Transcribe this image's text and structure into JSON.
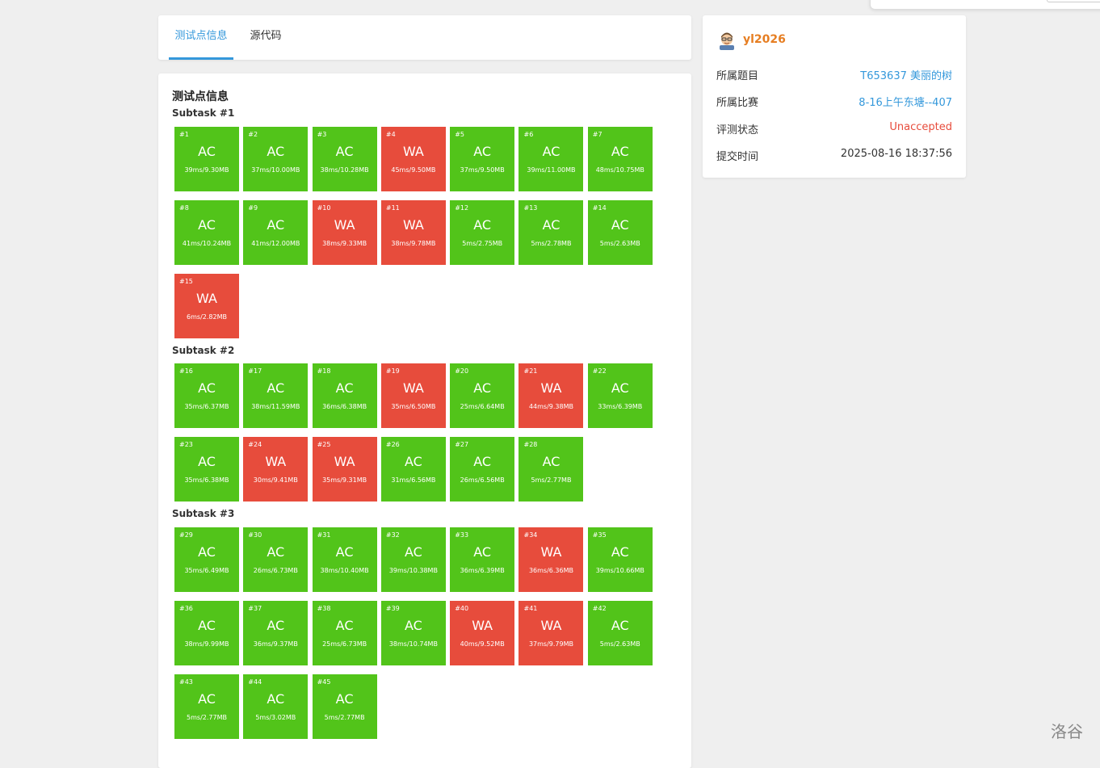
{
  "tabs": [
    {
      "label": "测试点信息",
      "active": true
    },
    {
      "label": "源代码",
      "active": false
    }
  ],
  "main": {
    "title": "测试点信息",
    "subtasks": [
      {
        "label": "Subtask #1",
        "cases": [
          {
            "num": "#1",
            "status": "AC",
            "info": "39ms/9.30MB"
          },
          {
            "num": "#2",
            "status": "AC",
            "info": "37ms/10.00MB"
          },
          {
            "num": "#3",
            "status": "AC",
            "info": "38ms/10.28MB"
          },
          {
            "num": "#4",
            "status": "WA",
            "info": "45ms/9.50MB"
          },
          {
            "num": "#5",
            "status": "AC",
            "info": "37ms/9.50MB"
          },
          {
            "num": "#6",
            "status": "AC",
            "info": "39ms/11.00MB"
          },
          {
            "num": "#7",
            "status": "AC",
            "info": "48ms/10.75MB"
          },
          {
            "num": "#8",
            "status": "AC",
            "info": "41ms/10.24MB"
          },
          {
            "num": "#9",
            "status": "AC",
            "info": "41ms/12.00MB"
          },
          {
            "num": "#10",
            "status": "WA",
            "info": "38ms/9.33MB"
          },
          {
            "num": "#11",
            "status": "WA",
            "info": "38ms/9.78MB"
          },
          {
            "num": "#12",
            "status": "AC",
            "info": "5ms/2.75MB"
          },
          {
            "num": "#13",
            "status": "AC",
            "info": "5ms/2.78MB"
          },
          {
            "num": "#14",
            "status": "AC",
            "info": "5ms/2.63MB"
          },
          {
            "num": "#15",
            "status": "WA",
            "info": "6ms/2.82MB"
          }
        ]
      },
      {
        "label": "Subtask #2",
        "cases": [
          {
            "num": "#16",
            "status": "AC",
            "info": "35ms/6.37MB"
          },
          {
            "num": "#17",
            "status": "AC",
            "info": "38ms/11.59MB"
          },
          {
            "num": "#18",
            "status": "AC",
            "info": "36ms/6.38MB"
          },
          {
            "num": "#19",
            "status": "WA",
            "info": "35ms/6.50MB"
          },
          {
            "num": "#20",
            "status": "AC",
            "info": "25ms/6.64MB"
          },
          {
            "num": "#21",
            "status": "WA",
            "info": "44ms/9.38MB"
          },
          {
            "num": "#22",
            "status": "AC",
            "info": "33ms/6.39MB"
          },
          {
            "num": "#23",
            "status": "AC",
            "info": "35ms/6.38MB"
          },
          {
            "num": "#24",
            "status": "WA",
            "info": "30ms/9.41MB"
          },
          {
            "num": "#25",
            "status": "WA",
            "info": "35ms/9.31MB"
          },
          {
            "num": "#26",
            "status": "AC",
            "info": "31ms/6.56MB"
          },
          {
            "num": "#27",
            "status": "AC",
            "info": "26ms/6.56MB"
          },
          {
            "num": "#28",
            "status": "AC",
            "info": "5ms/2.77MB"
          }
        ]
      },
      {
        "label": "Subtask #3",
        "cases": [
          {
            "num": "#29",
            "status": "AC",
            "info": "35ms/6.49MB"
          },
          {
            "num": "#30",
            "status": "AC",
            "info": "26ms/6.73MB"
          },
          {
            "num": "#31",
            "status": "AC",
            "info": "38ms/10.40MB"
          },
          {
            "num": "#32",
            "status": "AC",
            "info": "39ms/10.38MB"
          },
          {
            "num": "#33",
            "status": "AC",
            "info": "36ms/6.39MB"
          },
          {
            "num": "#34",
            "status": "WA",
            "info": "36ms/6.36MB"
          },
          {
            "num": "#35",
            "status": "AC",
            "info": "39ms/10.66MB"
          },
          {
            "num": "#36",
            "status": "AC",
            "info": "38ms/9.99MB"
          },
          {
            "num": "#37",
            "status": "AC",
            "info": "36ms/9.37MB"
          },
          {
            "num": "#38",
            "status": "AC",
            "info": "25ms/6.73MB"
          },
          {
            "num": "#39",
            "status": "AC",
            "info": "38ms/10.74MB"
          },
          {
            "num": "#40",
            "status": "WA",
            "info": "40ms/9.52MB"
          },
          {
            "num": "#41",
            "status": "WA",
            "info": "37ms/9.79MB"
          },
          {
            "num": "#42",
            "status": "AC",
            "info": "5ms/2.63MB"
          },
          {
            "num": "#43",
            "status": "AC",
            "info": "5ms/2.77MB"
          },
          {
            "num": "#44",
            "status": "AC",
            "info": "5ms/3.02MB"
          },
          {
            "num": "#45",
            "status": "AC",
            "info": "5ms/2.77MB"
          }
        ]
      }
    ]
  },
  "side": {
    "username": "yl2026",
    "rows": [
      {
        "key": "所属题目",
        "value": "T653637 美丽的树",
        "style": "link"
      },
      {
        "key": "所属比赛",
        "value": "8-16上午东塘--407",
        "style": "link"
      },
      {
        "key": "评测状态",
        "value": "Unaccepted",
        "style": "red"
      },
      {
        "key": "提交时间",
        "value": "2025-08-16 18:37:56",
        "style": "plain"
      }
    ]
  },
  "watermark": "洛谷",
  "colors": {
    "ac": "#52c41a",
    "wa": "#e74c3c",
    "accent": "#3498db",
    "username": "#e67e22"
  }
}
